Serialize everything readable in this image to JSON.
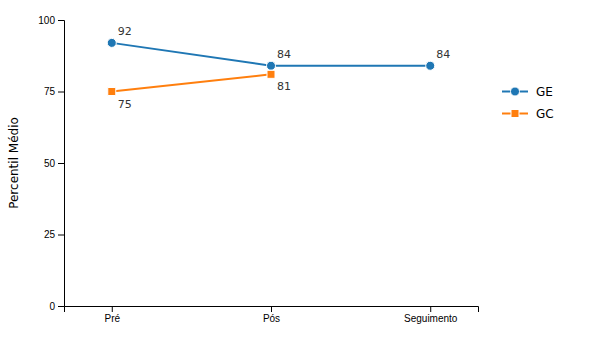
{
  "chart_data": {
    "type": "line",
    "categories": [
      "Pré",
      "Pós",
      "Seguimento"
    ],
    "series": [
      {
        "name": "GE",
        "values": [
          92,
          84,
          84
        ],
        "marker": "circle"
      },
      {
        "name": "GC",
        "values": [
          75,
          81,
          null
        ],
        "marker": "square"
      }
    ],
    "ylabel": "Percentil Médio",
    "ylim": [
      0,
      100
    ],
    "yticks": [
      0,
      25,
      50,
      75,
      100
    ],
    "data_labels": true,
    "legend": "right"
  }
}
